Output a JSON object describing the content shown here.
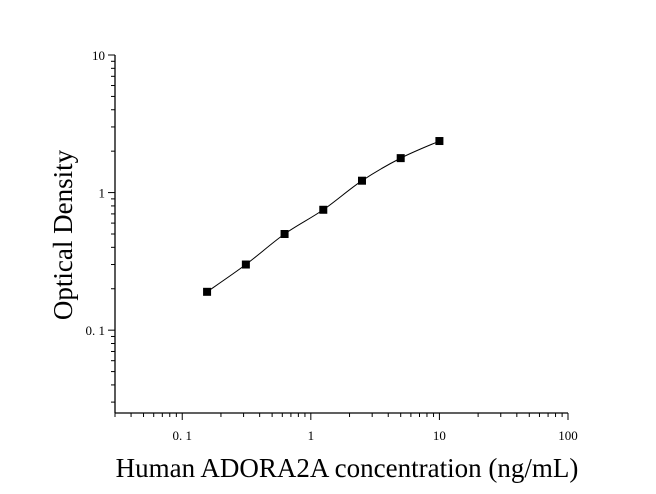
{
  "chart_data": {
    "type": "scatter",
    "title": "",
    "xlabel": "Human ADORA2A concentration (ng/mL)",
    "ylabel": "Optical Density",
    "x_scale": "log",
    "y_scale": "log",
    "xlim": [
      0.03,
      100
    ],
    "ylim": [
      0.025,
      10
    ],
    "x_ticks": [
      {
        "value": 0.1,
        "label": "0. 1"
      },
      {
        "value": 1,
        "label": "1"
      },
      {
        "value": 10,
        "label": "10"
      },
      {
        "value": 100,
        "label": "100"
      }
    ],
    "y_ticks": [
      {
        "value": 0.1,
        "label": "0. 1"
      },
      {
        "value": 1,
        "label": "1"
      },
      {
        "value": 10,
        "label": "10"
      }
    ],
    "grid": false,
    "legend": "none",
    "series": [
      {
        "marker": "square",
        "fit_line": true,
        "color": "#000000",
        "points": [
          {
            "x": 0.156,
            "y": 0.19
          },
          {
            "x": 0.3125,
            "y": 0.3
          },
          {
            "x": 0.625,
            "y": 0.5
          },
          {
            "x": 1.25,
            "y": 0.75
          },
          {
            "x": 2.5,
            "y": 1.22
          },
          {
            "x": 5,
            "y": 1.78
          },
          {
            "x": 10,
            "y": 2.37
          }
        ]
      }
    ]
  }
}
